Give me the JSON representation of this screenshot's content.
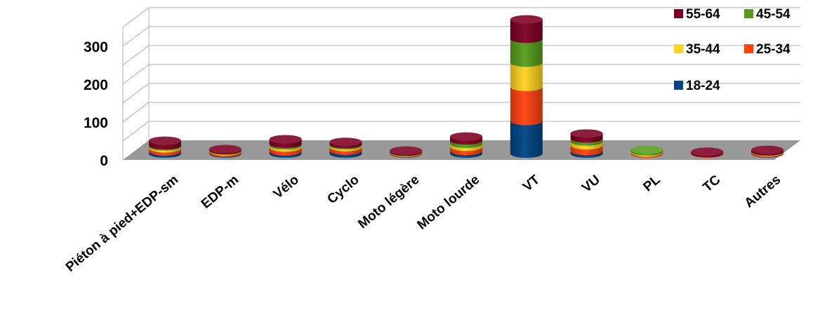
{
  "chart_data": {
    "type": "bar",
    "stacked": true,
    "style": "3d-cylinder",
    "title": "",
    "xlabel": "",
    "ylabel": "",
    "ylim": [
      0,
      350
    ],
    "yticks": [
      0,
      100,
      200,
      300
    ],
    "grid": true,
    "legend_position": "top-right",
    "categories": [
      "Piéton à pied+EDP-sm",
      "EDP-m",
      "Vélo",
      "Cyclo",
      "Moto légère",
      "Moto lourde",
      "VT",
      "VU",
      "PL",
      "TC",
      "Autres"
    ],
    "series": [
      {
        "name": "18-24",
        "color": "#004586",
        "values": [
          6,
          2,
          6,
          8,
          1,
          7,
          86,
          7,
          0,
          0,
          1
        ]
      },
      {
        "name": "25-34",
        "color": "#ff420e",
        "values": [
          8,
          4,
          10,
          9,
          2,
          11,
          90,
          15,
          3,
          1,
          3
        ]
      },
      {
        "name": "35-44",
        "color": "#ffd320",
        "values": [
          5,
          2,
          6,
          5,
          1,
          8,
          64,
          10,
          3,
          0,
          1
        ]
      },
      {
        "name": "45-54",
        "color": "#579d1c",
        "values": [
          3,
          1,
          4,
          3,
          1,
          9,
          63,
          8,
          4,
          0,
          1
        ]
      },
      {
        "name": "55-64",
        "color": "#7e0021",
        "values": [
          12,
          3,
          12,
          6,
          3,
          10,
          51,
          13,
          0,
          4,
          4
        ]
      }
    ]
  }
}
